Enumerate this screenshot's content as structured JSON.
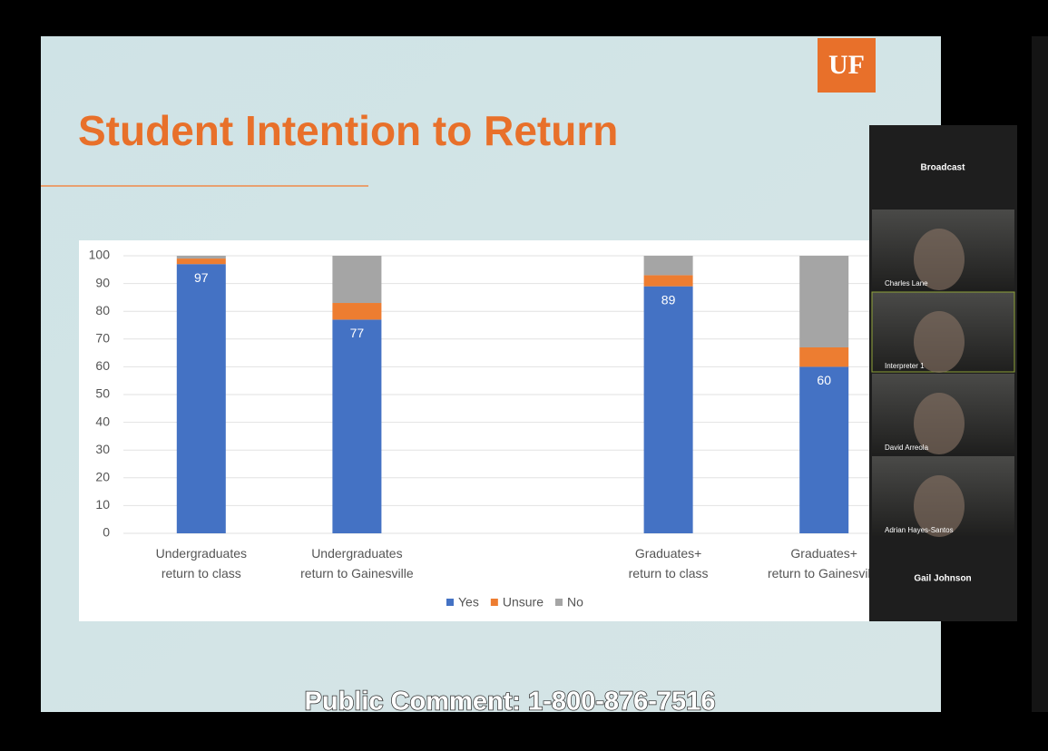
{
  "slide": {
    "logo": "UF"
  },
  "chart_data": {
    "type": "stacked_bar",
    "title": "Student Intention to Return",
    "categories": [
      "Undergraduates return to class",
      "Undergraduates return to Gainesville",
      null,
      "Graduates+ return to class",
      "Graduates+ return to Gainesville"
    ],
    "series": [
      {
        "name": "Yes",
        "color": "#4472c4",
        "values": [
          97,
          77,
          null,
          89,
          60
        ],
        "show_labels": true
      },
      {
        "name": "Unsure",
        "color": "#ed7d31",
        "values": [
          2,
          6,
          null,
          4,
          7
        ],
        "show_labels": false
      },
      {
        "name": "No",
        "color": "#a5a5a5",
        "values": [
          1,
          17,
          null,
          7,
          33
        ],
        "show_labels": false
      }
    ],
    "ylim": [
      0,
      100
    ],
    "yticks": [
      0,
      10,
      20,
      30,
      40,
      50,
      60,
      70,
      80,
      90,
      100
    ],
    "grid": true,
    "legend": "bottom"
  },
  "meeting": {
    "panel_title": "Broadcast",
    "participants": [
      "Charles Lane",
      "Interpreter 1",
      "David Arreola",
      "Adrian Hayes-Santos",
      "Gail Johnson"
    ]
  },
  "caption": "Public Comment: 1-800-876-7516"
}
